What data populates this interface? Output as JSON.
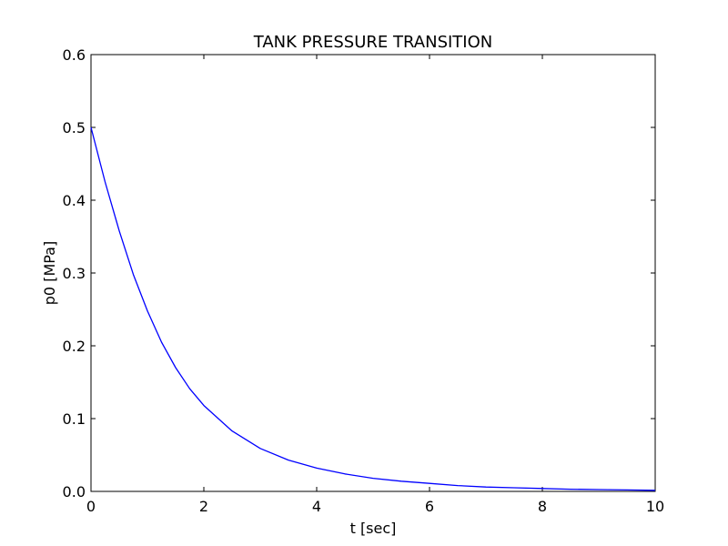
{
  "chart_data": {
    "type": "line",
    "title": "TANK PRESSURE TRANSITION",
    "xlabel": "t [sec]",
    "ylabel": "p0 [MPa]",
    "xlim": [
      0,
      10
    ],
    "ylim": [
      0.0,
      0.6
    ],
    "xticks": [
      0,
      2,
      4,
      6,
      8,
      10
    ],
    "xtick_labels": [
      "0",
      "2",
      "4",
      "6",
      "8",
      "10"
    ],
    "yticks": [
      0.0,
      0.1,
      0.2,
      0.3,
      0.4,
      0.5,
      0.6
    ],
    "ytick_labels": [
      "0.0",
      "0.1",
      "0.2",
      "0.3",
      "0.4",
      "0.5",
      "0.6"
    ],
    "grid": false,
    "legend": false,
    "series": [
      {
        "color": "#0000ff",
        "x": [
          0,
          0.25,
          0.5,
          0.75,
          1.0,
          1.25,
          1.5,
          1.75,
          2.0,
          2.5,
          3.0,
          3.5,
          4.0,
          4.5,
          5.0,
          5.5,
          6.0,
          6.5,
          7.0,
          7.5,
          8.0,
          8.5,
          9.0,
          9.5,
          10.0
        ],
        "y": [
          0.5,
          0.425,
          0.358,
          0.298,
          0.248,
          0.205,
          0.17,
          0.141,
          0.118,
          0.083,
          0.059,
          0.043,
          0.032,
          0.024,
          0.018,
          0.014,
          0.011,
          0.008,
          0.006,
          0.005,
          0.004,
          0.003,
          0.0025,
          0.002,
          0.0015
        ]
      }
    ]
  }
}
